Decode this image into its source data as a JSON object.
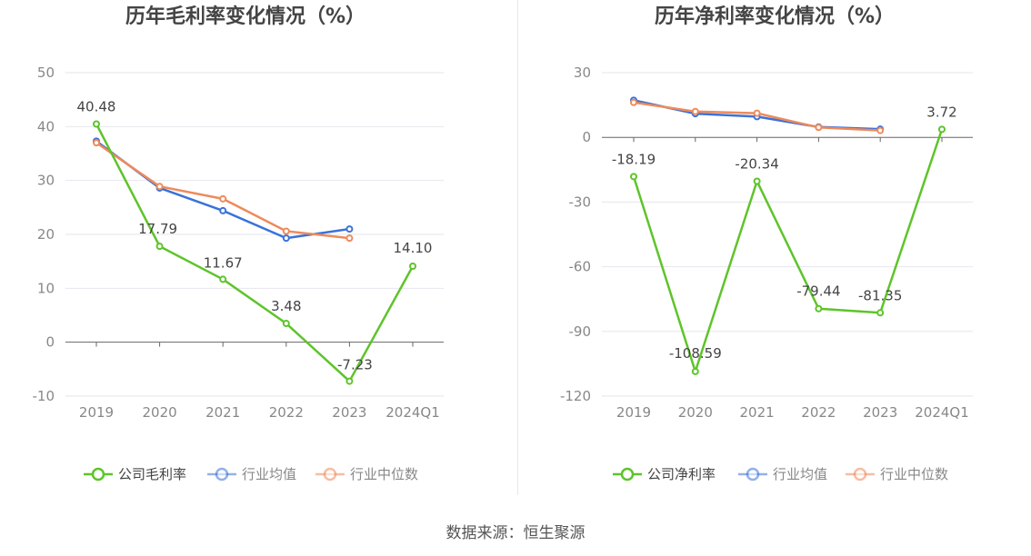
{
  "source_text": "数据来源：恒生聚源",
  "chart_data": [
    {
      "type": "line",
      "title": "历年毛利率变化情况（%）",
      "categories": [
        "2019",
        "2020",
        "2021",
        "2022",
        "2023",
        "2024Q1"
      ],
      "ylim": [
        -10,
        50
      ],
      "yticks": [
        -10,
        0,
        10,
        20,
        30,
        40,
        50
      ],
      "grid": true,
      "legend_position": "bottom",
      "series": [
        {
          "name": "公司毛利率",
          "color": "#5ec42a",
          "values": [
            40.48,
            17.79,
            11.67,
            3.48,
            -7.23,
            14.1
          ],
          "labels": [
            "40.48",
            "17.79",
            "11.67",
            "3.48",
            "-7.23",
            "14.10"
          ]
        },
        {
          "name": "行业均值",
          "color": "#3b72d9",
          "values": [
            37.3,
            28.6,
            24.4,
            19.3,
            21.0,
            null
          ]
        },
        {
          "name": "行业中位数",
          "color": "#ee8a5a",
          "values": [
            37.0,
            28.9,
            26.6,
            20.6,
            19.3,
            null
          ]
        }
      ]
    },
    {
      "type": "line",
      "title": "历年净利率变化情况（%）",
      "categories": [
        "2019",
        "2020",
        "2021",
        "2022",
        "2023",
        "2024Q1"
      ],
      "ylim": [
        -120,
        30
      ],
      "yticks": [
        -120,
        -90,
        -60,
        -30,
        0,
        30
      ],
      "grid": true,
      "legend_position": "bottom",
      "series": [
        {
          "name": "公司净利率",
          "color": "#5ec42a",
          "values": [
            -18.19,
            -108.59,
            -20.34,
            -79.44,
            -81.35,
            3.72
          ],
          "labels": [
            "-18.19",
            "-108.59",
            "-20.34",
            "-79.44",
            "-81.35",
            "3.72"
          ]
        },
        {
          "name": "行业均值",
          "color": "#3b72d9",
          "values": [
            17.2,
            11.0,
            9.6,
            4.8,
            3.8,
            null
          ]
        },
        {
          "name": "行业中位数",
          "color": "#ee8a5a",
          "values": [
            16.2,
            12.0,
            11.2,
            4.6,
            3.2,
            null
          ]
        }
      ]
    }
  ]
}
